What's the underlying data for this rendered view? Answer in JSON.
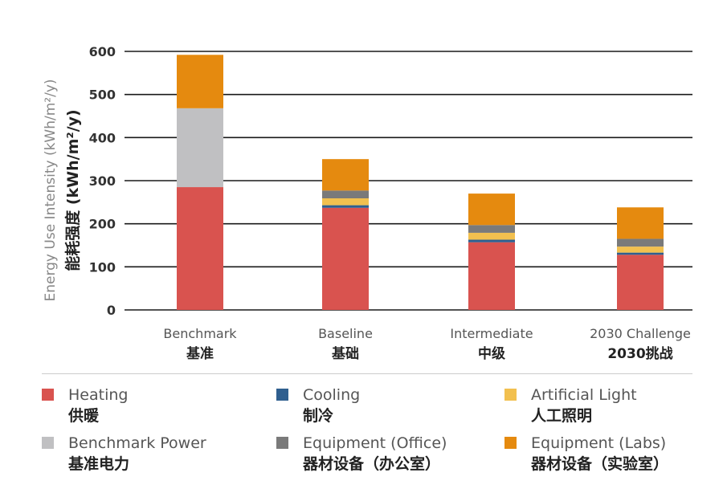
{
  "chart_data": {
    "type": "bar",
    "stacked": true,
    "ylabel_en": "Energy Use Intensity (kWh/m²/y)",
    "ylabel_zh": "能耗强度 (kWh/m²/y)",
    "ylim": [
      0,
      600
    ],
    "yticks": [
      "0",
      "100",
      "200",
      "300",
      "400",
      "500",
      "600"
    ],
    "grid": true,
    "categories": [
      {
        "en": "Benchmark",
        "zh": "基准"
      },
      {
        "en": "Baseline",
        "zh": "基础"
      },
      {
        "en": "Intermediate",
        "zh": "中级"
      },
      {
        "en": "2030 Challenge",
        "zh": "2030挑战"
      }
    ],
    "series": [
      {
        "key": "heating",
        "name_en": "Heating",
        "name_zh": "供暖",
        "color": "#d9534f",
        "values": [
          285,
          237,
          157,
          128
        ]
      },
      {
        "key": "cooling",
        "name_en": "Cooling",
        "name_zh": "制冷",
        "color": "#2f5f8f",
        "values": [
          0,
          6,
          6,
          5
        ]
      },
      {
        "key": "lighting",
        "name_en": "Artificial Light",
        "name_zh": "人工照明",
        "color": "#f2c04f",
        "values": [
          0,
          16,
          16,
          14
        ]
      },
      {
        "key": "benchmark_power",
        "name_en": "Benchmark Power",
        "name_zh": "基准电力",
        "color": "#c0c0c2",
        "values": [
          183,
          0,
          0,
          0
        ]
      },
      {
        "key": "equip_office",
        "name_en": "Equipment (Office)",
        "name_zh": "器材设备（办公室）",
        "color": "#7a7a7a",
        "values": [
          0,
          18,
          18,
          18
        ]
      },
      {
        "key": "equip_labs",
        "name_en": "Equipment (Labs)",
        "name_zh": "器材设备（实验室）",
        "color": "#e58a0f",
        "values": [
          124,
          73,
          73,
          73
        ]
      }
    ],
    "legend_order": [
      "heating",
      "cooling",
      "lighting",
      "benchmark_power",
      "equip_office",
      "equip_labs"
    ]
  }
}
